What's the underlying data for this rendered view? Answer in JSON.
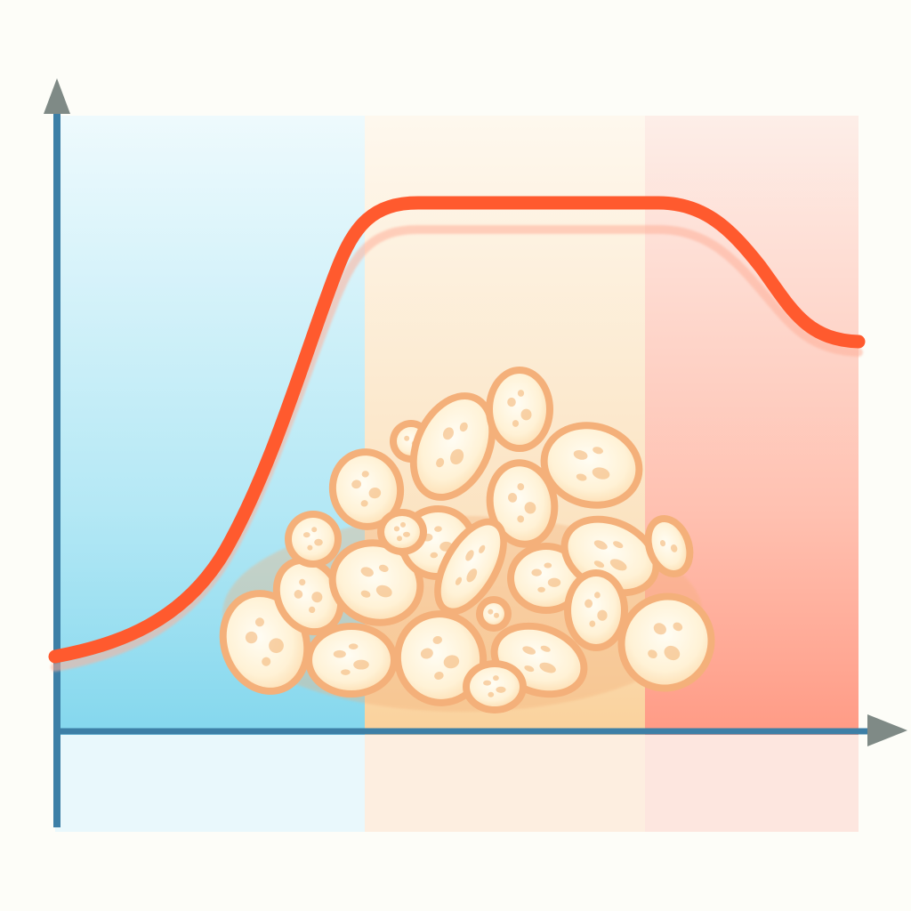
{
  "colors": {
    "background": "#fdfdf8",
    "axis": "#3d7fa6",
    "arrowhead": "#7f8a86",
    "curve": "#ff5a2e",
    "zone_cool": "#6fd0ea",
    "zone_mid": "#f9c98a",
    "zone_warm": "#ff8a72",
    "particle_fill": "#fff7e4",
    "particle_rim": "#f4b07a",
    "particle_spot": "#f2b070"
  },
  "zones": [
    {
      "name": "cool-zone",
      "color": "#6fd0ea"
    },
    {
      "name": "middle-zone",
      "color": "#f9c98a"
    },
    {
      "name": "warm-zone",
      "color": "#ff8a72"
    }
  ],
  "icons": {
    "y_axis_arrow": "triangle-up-arrow-icon",
    "x_axis_arrow": "triangle-right-arrow-icon",
    "pile": "particle-pile-icon"
  }
}
